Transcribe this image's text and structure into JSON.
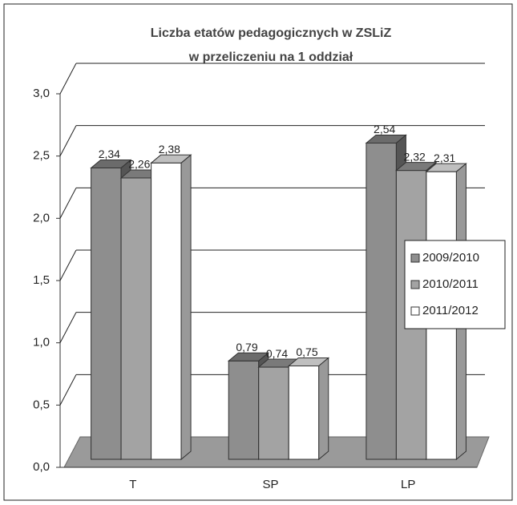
{
  "chart_data": {
    "type": "bar",
    "title": [
      "Liczba etatów pedagogicznych w  ZSLiZ",
      "w przeliczeniu na 1 oddział"
    ],
    "categories": [
      "T",
      "SP",
      "LP"
    ],
    "series": [
      {
        "name": "2009/2010",
        "color": "#8e8e8e",
        "values": [
          2.34,
          0.79,
          2.54
        ],
        "value_labels": [
          "2,34",
          "0,79",
          "2,54"
        ]
      },
      {
        "name": "2010/2011",
        "color": "#a3a3a3",
        "values": [
          2.26,
          0.74,
          2.32
        ],
        "value_labels": [
          "2,26",
          "0,74",
          "2,32"
        ]
      },
      {
        "name": "2011/2012",
        "color": "#ffffff",
        "values": [
          2.38,
          0.75,
          2.31
        ],
        "value_labels": [
          "2,38",
          "0,75",
          "2,31"
        ]
      }
    ],
    "ylim": [
      0,
      3
    ],
    "yticks": [
      {
        "value": 0,
        "label": "0,0"
      },
      {
        "value": 0.5,
        "label": "0,5"
      },
      {
        "value": 1,
        "label": "1,0"
      },
      {
        "value": 1.5,
        "label": "1,5"
      },
      {
        "value": 2,
        "label": "2,0"
      },
      {
        "value": 2.5,
        "label": "2,5"
      },
      {
        "value": 3,
        "label": "3,0"
      }
    ],
    "grid": true,
    "legend": "right"
  }
}
